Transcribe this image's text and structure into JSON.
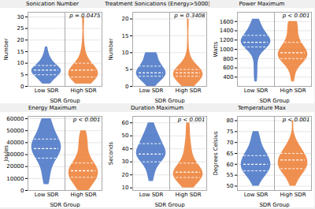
{
  "chart_data": [
    {
      "type": "violin",
      "title": "Sonication Number",
      "xlabel": "SDR Group",
      "ylabel": "Number",
      "categories": [
        "Low SDR",
        "High SDR"
      ],
      "colors": [
        "#4472C4",
        "#ED7D31"
      ],
      "values": [
        [
          1,
          1,
          2,
          2,
          3,
          3,
          3,
          4,
          4,
          4,
          4,
          5,
          5,
          5,
          5,
          5,
          6,
          6,
          6,
          6,
          6,
          6,
          7,
          7,
          7,
          7,
          7,
          7,
          7,
          7,
          8,
          8,
          8,
          8,
          8,
          9,
          9,
          9,
          9,
          10,
          10,
          10,
          11,
          11,
          12,
          12,
          13,
          14,
          15,
          17
        ],
        [
          1,
          1,
          1,
          2,
          2,
          2,
          3,
          3,
          3,
          3,
          4,
          4,
          4,
          4,
          4,
          5,
          5,
          5,
          5,
          5,
          5,
          6,
          6,
          6,
          6,
          6,
          7,
          7,
          7,
          7,
          7,
          7,
          8,
          8,
          8,
          8,
          9,
          9,
          9,
          10,
          10,
          11,
          12,
          13,
          14,
          16,
          18,
          22,
          28,
          30
        ]
      ],
      "q1": [
        5,
        4
      ],
      "median": [
        7,
        7
      ],
      "q3": [
        9,
        10
      ],
      "annotation": "p = 0.0475",
      "ylim": [
        0,
        32
      ],
      "yticks": [
        0,
        5,
        10,
        15,
        20,
        25,
        30
      ],
      "grid": true
    },
    {
      "type": "violin",
      "title": "Treatment Sonications (Energy>5000)",
      "xlabel": "SDR Group",
      "ylabel": "Number",
      "categories": [
        "Low SDR",
        "High SDR"
      ],
      "colors": [
        "#4472C4",
        "#ED7D31"
      ],
      "values": [
        [
          0,
          0,
          1,
          1,
          1,
          2,
          2,
          2,
          2,
          2,
          3,
          3,
          3,
          3,
          3,
          3,
          3,
          4,
          4,
          4,
          4,
          4,
          4,
          4,
          4,
          5,
          5,
          5,
          5,
          5,
          5,
          6,
          6,
          6,
          6,
          6,
          7,
          7,
          7,
          7,
          8,
          8,
          8,
          9,
          9,
          10,
          10,
          10,
          10,
          10
        ],
        [
          0,
          0,
          0,
          1,
          1,
          1,
          1,
          2,
          2,
          2,
          2,
          2,
          2,
          3,
          3,
          3,
          3,
          3,
          3,
          3,
          3,
          3,
          4,
          4,
          4,
          4,
          4,
          4,
          4,
          4,
          4,
          5,
          5,
          5,
          5,
          5,
          5,
          5,
          6,
          6,
          6,
          6,
          7,
          7,
          8,
          9,
          11,
          14,
          18,
          20
        ]
      ],
      "q1": [
        3,
        3
      ],
      "median": [
        4,
        4
      ],
      "q3": [
        6,
        5
      ],
      "annotation": "p = 0.3408",
      "ylim": [
        0,
        22
      ],
      "yticks": [
        0,
        5,
        10,
        15,
        20
      ],
      "grid": true
    },
    {
      "type": "violin",
      "title": "Power Maximum",
      "xlabel": "SDR Group",
      "ylabel": "Watts",
      "categories": [
        "Low SDR",
        "High SDR"
      ],
      "colors": [
        "#4472C4",
        "#ED7D31"
      ],
      "values": [
        [
          300,
          400,
          500,
          600,
          700,
          800,
          900,
          950,
          1000,
          1000,
          1050,
          1050,
          1050,
          1100,
          1100,
          1100,
          1100,
          1100,
          1100,
          1100,
          1150,
          1150,
          1150,
          1150,
          1150,
          1200,
          1200,
          1200,
          1200,
          1200,
          1200,
          1250,
          1250,
          1250,
          1250,
          1300,
          1300,
          1300,
          1350,
          1350,
          1400,
          1400,
          1450,
          1450,
          1500,
          1500,
          1550,
          1600,
          1650,
          1650
        ],
        [
          300,
          400,
          500,
          600,
          650,
          700,
          700,
          750,
          750,
          750,
          800,
          800,
          800,
          800,
          850,
          850,
          850,
          850,
          850,
          900,
          900,
          900,
          900,
          900,
          900,
          950,
          950,
          950,
          1000,
          1000,
          1000,
          1050,
          1050,
          1100,
          1100,
          1100,
          1150,
          1200,
          1200,
          1250,
          1300,
          1350,
          1400,
          1450,
          1500,
          1500,
          1550,
          1600,
          1600,
          1600
        ]
      ],
      "q1": [
        1050,
        800
      ],
      "median": [
        1150,
        925
      ],
      "q3": [
        1300,
        1150
      ],
      "annotation": "p < 0.001",
      "ylim": [
        200,
        1800
      ],
      "yticks": [
        400,
        600,
        800,
        1000,
        1200,
        1400,
        1600
      ],
      "grid": true
    },
    {
      "type": "violin",
      "title": "Energy Maximum",
      "xlabel": "SDR Group",
      "ylabel": "Joules",
      "categories": [
        "Low SDR",
        "High SDR"
      ],
      "colors": [
        "#4472C4",
        "#ED7D31"
      ],
      "values": [
        [
          5000,
          8000,
          10000,
          12000,
          15000,
          18000,
          20000,
          22000,
          24000,
          25000,
          26000,
          27000,
          28000,
          29000,
          30000,
          30000,
          31000,
          32000,
          33000,
          33000,
          34000,
          35000,
          35000,
          35000,
          36000,
          36000,
          37000,
          38000,
          38000,
          39000,
          40000,
          40000,
          41000,
          42000,
          42000,
          43000,
          44000,
          45000,
          46000,
          47000,
          48000,
          49000,
          50000,
          52000,
          54000,
          56000,
          58000,
          59000,
          60000,
          60000
        ],
        [
          0,
          1000,
          2000,
          3000,
          4000,
          5000,
          6000,
          7000,
          8000,
          9000,
          10000,
          10000,
          11000,
          11000,
          12000,
          12000,
          13000,
          13000,
          14000,
          14000,
          15000,
          15000,
          16000,
          16000,
          17000,
          17000,
          18000,
          18000,
          19000,
          20000,
          20000,
          21000,
          22000,
          22000,
          23000,
          24000,
          25000,
          26000,
          28000,
          30000,
          32000,
          34000,
          36000,
          38000,
          40000,
          42000,
          44000,
          46000,
          48000,
          50000
        ]
      ],
      "q1": [
        27000,
        11000
      ],
      "median": [
        35000,
        16500
      ],
      "q3": [
        43000,
        23000
      ],
      "annotation": "p < 0.001",
      "ylim": [
        0,
        62000
      ],
      "yticks": [
        0,
        10000,
        20000,
        30000,
        40000,
        50000,
        60000
      ],
      "grid": true
    },
    {
      "type": "violin",
      "title": "Duration Maximum",
      "xlabel": "SDR Group",
      "ylabel": "Seconds",
      "categories": [
        "Low SDR",
        "High SDR"
      ],
      "colors": [
        "#4472C4",
        "#ED7D31"
      ],
      "values": [
        [
          15,
          17,
          20,
          22,
          24,
          26,
          28,
          29,
          30,
          30,
          31,
          32,
          33,
          33,
          34,
          34,
          35,
          35,
          35,
          35,
          36,
          36,
          37,
          37,
          38,
          38,
          39,
          39,
          40,
          40,
          41,
          42,
          42,
          43,
          44,
          44,
          45,
          46,
          47,
          47,
          48,
          49,
          50,
          51,
          52,
          53,
          55,
          57,
          59,
          60
        ],
        [
          10,
          11,
          12,
          13,
          14,
          15,
          15,
          16,
          17,
          17,
          18,
          18,
          18,
          19,
          19,
          20,
          20,
          20,
          21,
          21,
          21,
          21,
          22,
          22,
          22,
          22,
          23,
          23,
          24,
          24,
          25,
          25,
          26,
          27,
          28,
          29,
          30,
          31,
          32,
          34,
          36,
          38,
          40,
          42,
          44,
          46,
          50,
          55,
          58,
          60
        ]
      ],
      "q1": [
        30,
        18
      ],
      "median": [
        36,
        22
      ],
      "q3": [
        44,
        29
      ],
      "annotation": "p < 0.001",
      "ylim": [
        8,
        65
      ],
      "yticks": [
        10,
        20,
        30,
        40,
        50,
        60
      ],
      "grid": true
    },
    {
      "type": "violin",
      "title": "Temperature Max",
      "xlabel": "SDR Group",
      "ylabel": "Degrees Celsius",
      "categories": [
        "Low SDR",
        "High SDR"
      ],
      "colors": [
        "#4472C4",
        "#ED7D31"
      ],
      "values": [
        [
          50,
          51,
          52,
          53,
          54,
          55,
          55,
          56,
          56,
          56,
          57,
          57,
          57,
          57,
          58,
          58,
          58,
          59,
          59,
          59,
          60,
          60,
          60,
          60,
          61,
          61,
          61,
          62,
          62,
          62,
          63,
          63,
          63,
          64,
          64,
          64,
          65,
          65,
          66,
          66,
          67,
          67,
          68,
          69,
          70,
          71,
          72,
          73,
          74,
          75
        ],
        [
          50,
          51,
          52,
          53,
          54,
          55,
          55,
          56,
          56,
          57,
          57,
          57,
          58,
          58,
          58,
          58,
          59,
          59,
          59,
          60,
          60,
          60,
          60,
          61,
          61,
          61,
          62,
          62,
          62,
          62,
          63,
          63,
          63,
          64,
          64,
          64,
          65,
          65,
          65,
          66,
          66,
          67,
          67,
          68,
          68,
          69,
          70,
          71,
          73,
          80
        ]
      ],
      "q1": [
        57,
        58
      ],
      "median": [
        60,
        62
      ],
      "q3": [
        64,
        65
      ],
      "annotation": "p < 0.001",
      "ylim": [
        48,
        82
      ],
      "yticks": [
        50,
        55,
        60,
        65,
        70,
        75,
        80
      ],
      "grid": true
    }
  ]
}
